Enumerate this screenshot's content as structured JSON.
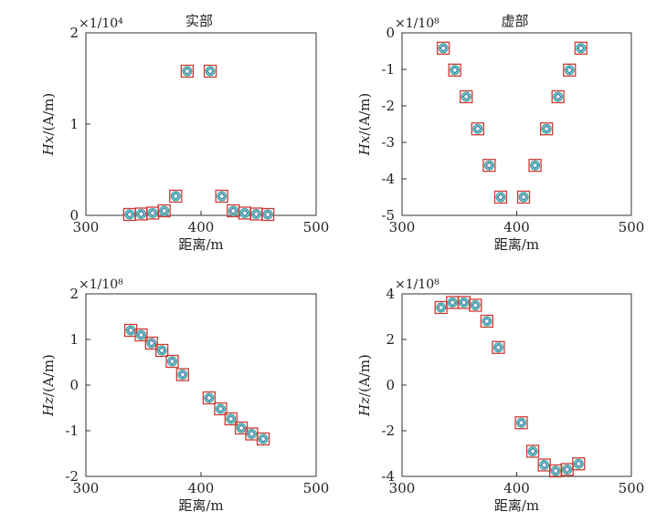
{
  "chart_data": [
    {
      "type": "scatter",
      "title": "实部",
      "exponent_label": "×1/10⁴",
      "xlabel": "距离/m",
      "ylabel_prefix": "Hx",
      "ylabel_suffix": "/(A/m)",
      "xlim": [
        300,
        500
      ],
      "ylim": [
        0,
        2
      ],
      "xticks": [
        300,
        400,
        500
      ],
      "yticks": [
        0,
        1,
        2
      ],
      "x": [
        338,
        348,
        358,
        368,
        378,
        388,
        408,
        418,
        428,
        438,
        448,
        458
      ],
      "y": [
        0.01,
        0.015,
        0.025,
        0.05,
        0.21,
        1.58,
        1.58,
        0.21,
        0.05,
        0.025,
        0.015,
        0.01
      ],
      "series": [
        {
          "name": "square",
          "values": [
            0.01,
            0.015,
            0.025,
            0.05,
            0.21,
            1.58,
            1.58,
            0.21,
            0.05,
            0.025,
            0.015,
            0.01
          ]
        }
      ]
    },
    {
      "type": "scatter",
      "title": "虚部",
      "exponent_label": "×1/10⁸",
      "xlabel": "距离/m",
      "ylabel_prefix": "Hx",
      "ylabel_suffix": "/(A/m)",
      "xlim": [
        300,
        500
      ],
      "ylim": [
        -5,
        0
      ],
      "xticks": [
        300,
        400,
        500
      ],
      "yticks": [
        0,
        -1,
        -2,
        -3,
        -4,
        -5
      ],
      "x": [
        336,
        346,
        356,
        366,
        376,
        386,
        406,
        416,
        426,
        436,
        446,
        456
      ],
      "y": [
        -0.42,
        -1.02,
        -1.75,
        -2.63,
        -3.63,
        -4.5,
        -4.5,
        -3.63,
        -2.63,
        -1.75,
        -1.02,
        -0.42
      ],
      "series": [
        {
          "name": "square",
          "values": [
            -0.42,
            -1.02,
            -1.75,
            -2.63,
            -3.63,
            -4.5,
            -4.5,
            -3.63,
            -2.63,
            -1.75,
            -1.02,
            -0.42
          ]
        }
      ]
    },
    {
      "type": "scatter",
      "title": "",
      "exponent_label": "×1/10⁸",
      "xlabel": "距离/m",
      "ylabel_prefix": "Hz",
      "ylabel_suffix": "/(A/m)",
      "xlim": [
        300,
        500
      ],
      "ylim": [
        -2,
        2
      ],
      "xticks": [
        300,
        400,
        500
      ],
      "yticks": [
        2,
        1,
        0,
        -1,
        -2
      ],
      "x": [
        339,
        348,
        357,
        366,
        375,
        384,
        407,
        417,
        426,
        435,
        444,
        454
      ],
      "y": [
        1.2,
        1.1,
        0.92,
        0.76,
        0.52,
        0.23,
        -0.28,
        -0.52,
        -0.74,
        -0.94,
        -1.07,
        -1.18
      ],
      "series": [
        {
          "name": "square",
          "values": [
            1.2,
            1.1,
            0.92,
            0.76,
            0.52,
            0.23,
            -0.28,
            -0.52,
            -0.74,
            -0.94,
            -1.07,
            -1.18
          ]
        }
      ]
    },
    {
      "type": "scatter",
      "title": "",
      "exponent_label": "×1/10⁸",
      "xlabel": "距离/m",
      "ylabel_prefix": "Hz",
      "ylabel_suffix": "/(A/m)",
      "xlim": [
        300,
        500
      ],
      "ylim": [
        -4,
        4
      ],
      "xticks": [
        300,
        400,
        500
      ],
      "yticks": [
        4,
        2,
        0,
        -2,
        -4
      ],
      "x": [
        334,
        344,
        354,
        364,
        374,
        384,
        404,
        414,
        424,
        434,
        444,
        454
      ],
      "y": [
        3.4,
        3.62,
        3.62,
        3.5,
        2.8,
        1.65,
        -1.65,
        -2.9,
        -3.5,
        -3.76,
        -3.7,
        -3.45
      ],
      "series": [
        {
          "name": "square",
          "values": [
            3.4,
            3.62,
            3.62,
            3.5,
            2.8,
            1.65,
            -1.65,
            -2.9,
            -3.5,
            -3.76,
            -3.7,
            -3.45
          ]
        }
      ]
    }
  ]
}
